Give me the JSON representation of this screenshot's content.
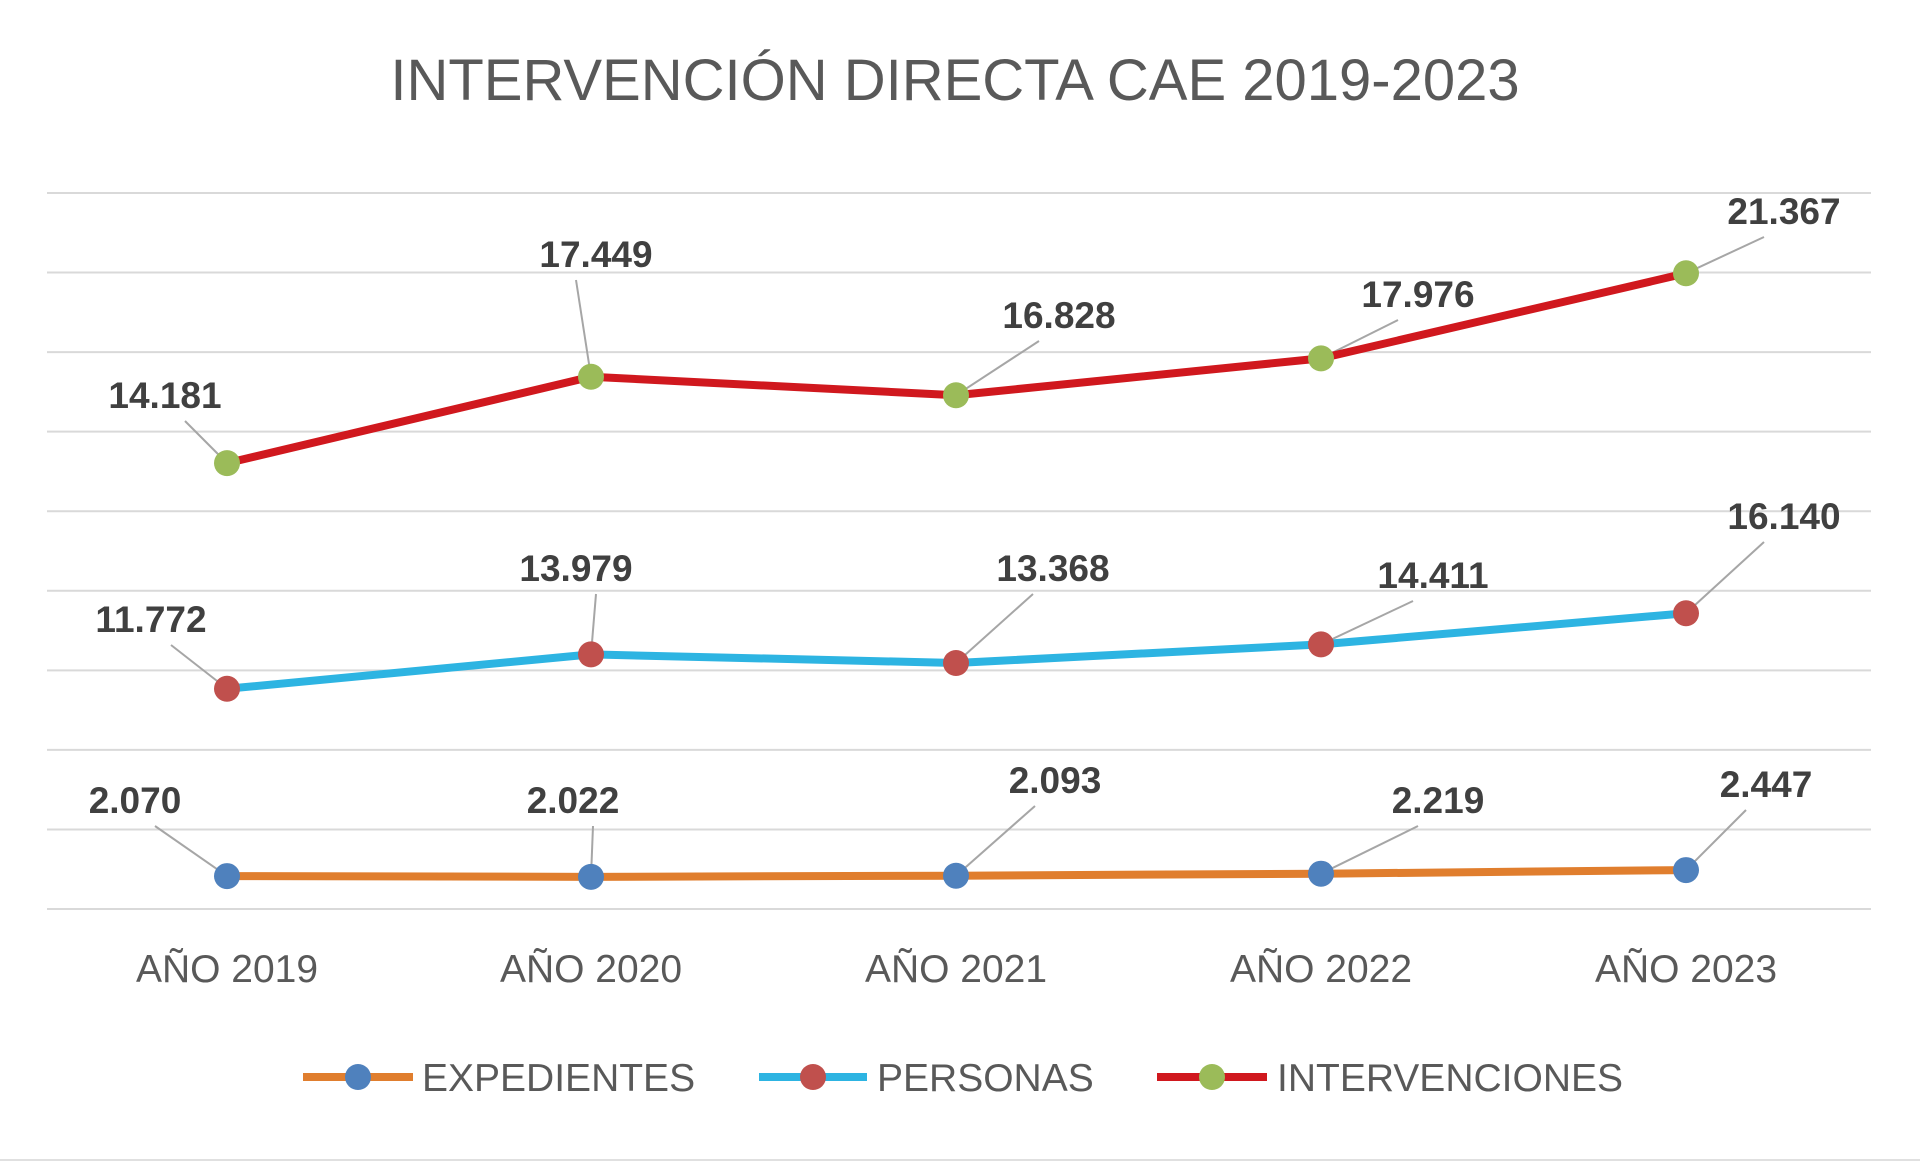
{
  "chart_data": {
    "type": "line",
    "stacked": true,
    "title": "INTERVENCIÓN DIRECTA CAE 2019-2023",
    "categories": [
      "AÑO 2019",
      "AÑO 2020",
      "AÑO 2021",
      "AÑO 2022",
      "AÑO  2023"
    ],
    "ylim": [
      0,
      45000
    ],
    "y_grid_step": 5000,
    "grid": true,
    "y_tick_labels_shown": false,
    "legend_position": "bottom",
    "series": [
      {
        "name": "EXPEDIENTES",
        "values": [
          2070,
          2022,
          2093,
          2219,
          2447
        ],
        "labels": [
          "2.070",
          "2.022",
          "2.093",
          "2.219",
          "2.447"
        ],
        "line_color": "#E07E2E",
        "marker_color": "#4F81BD"
      },
      {
        "name": "PERSONAS",
        "values": [
          11772,
          13979,
          13368,
          14411,
          16140
        ],
        "labels": [
          "11.772",
          "13.979",
          "13.368",
          "14.411",
          "16.140"
        ],
        "line_color": "#2DB4E2",
        "marker_color": "#C0504D"
      },
      {
        "name": "INTERVENCIONES",
        "values": [
          14181,
          17449,
          16828,
          17976,
          21367
        ],
        "labels": [
          "14.181",
          "17.449",
          "16.828",
          "17.976",
          "21.367"
        ],
        "line_color": "#D0181E",
        "marker_color": "#9BBB59"
      }
    ]
  }
}
